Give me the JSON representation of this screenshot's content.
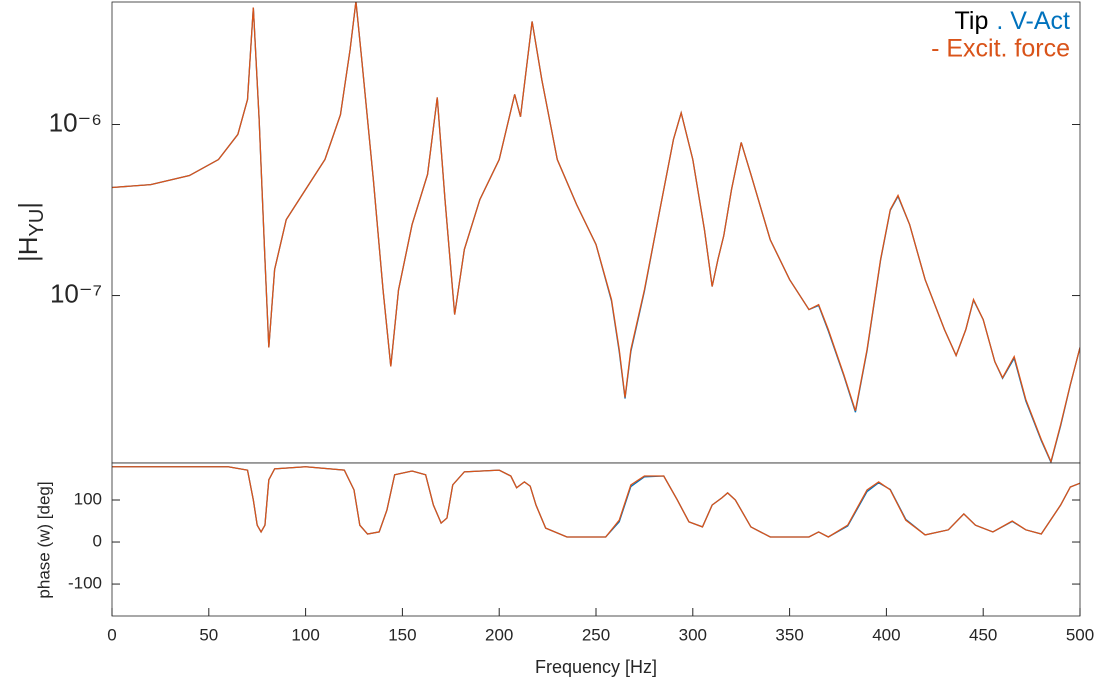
{
  "chart_data": [
    {
      "type": "line",
      "log_scale": true,
      "ylabel_main": "|H",
      "ylabel_sub": "YU",
      "ylabel_end": "|",
      "legend_prefix": "Tip",
      "x": [
        0,
        20,
        40,
        55,
        65,
        70,
        73,
        76,
        79,
        81,
        84,
        90,
        100,
        110,
        118,
        123,
        126,
        129,
        135,
        140,
        144,
        148,
        155,
        163,
        168,
        172,
        177,
        182,
        190,
        200,
        208,
        211,
        217,
        222,
        230,
        240,
        250,
        258,
        262,
        265,
        268,
        275,
        283,
        290,
        294,
        300,
        306,
        310,
        313,
        316,
        320,
        325,
        330,
        340,
        350,
        360,
        365,
        370,
        378,
        384,
        390,
        397,
        402,
        406,
        412,
        420,
        430,
        436,
        441,
        445,
        450,
        456,
        460,
        466,
        472,
        480,
        485,
        490,
        495,
        500
      ],
      "series": [
        {
          "name": ". V-Act",
          "color": "#0072bd",
          "values": [
            4.28e-07,
            4.45e-07,
            5.03e-07,
            6.24e-07,
            8.75e-07,
            1.4e-06,
            4.83e-06,
            1.07e-06,
            1.63e-07,
            4.97e-08,
            1.42e-07,
            2.78e-07,
            4.17e-07,
            6.24e-07,
            1.14e-06,
            2.75e-06,
            5.24e-06,
            2.4e-06,
            4.76e-07,
            1.08e-07,
            3.85e-08,
            1.08e-07,
            2.6e-07,
            5.11e-07,
            1.44e-06,
            3.64e-07,
            7.74e-08,
            1.86e-07,
            3.64e-07,
            6.24e-07,
            1.5e-06,
            1.11e-06,
            4e-06,
            1.83e-06,
            6.24e-07,
            3.4e-07,
            1.99e-07,
            9.3e-08,
            4.7e-08,
            2.5e-08,
            4.7e-08,
            1.06e-07,
            3.18e-07,
            8.17e-07,
            1.17e-06,
            6.24e-07,
            2.43e-07,
            1.13e-07,
            1.63e-07,
            2.24e-07,
            4.17e-07,
            7.85e-07,
            5.11e-07,
            2.12e-07,
            1.24e-07,
            8.28e-08,
            8.75e-08,
            6.2e-08,
            3.4e-08,
            2.08e-08,
            4.75e-08,
            1.61e-07,
            3.15e-07,
            3.8e-07,
            2.6e-07,
            1.24e-07,
            6.32e-08,
            4.46e-08,
            6.32e-08,
            9.4e-08,
            7.24e-08,
            4.11e-08,
            3.28e-08,
            4.3e-08,
            2.42e-08,
            1.42e-08,
            1.06e-08,
            1.73e-08,
            3e-08,
            4.97e-08
          ]
        },
        {
          "name": "- Excit. force",
          "color": "#d95319",
          "values": [
            4.28e-07,
            4.45e-07,
            5.03e-07,
            6.24e-07,
            8.75e-07,
            1.4e-06,
            4.83e-06,
            1.07e-06,
            1.63e-07,
            4.97e-08,
            1.42e-07,
            2.78e-07,
            4.17e-07,
            6.24e-07,
            1.14e-06,
            2.75e-06,
            5.24e-06,
            2.4e-06,
            4.76e-07,
            1.08e-07,
            3.85e-08,
            1.08e-07,
            2.6e-07,
            5.11e-07,
            1.44e-06,
            3.64e-07,
            7.74e-08,
            1.86e-07,
            3.64e-07,
            6.24e-07,
            1.5e-06,
            1.11e-06,
            4e-06,
            1.83e-06,
            6.24e-07,
            3.4e-07,
            1.99e-07,
            9.48e-08,
            4.83e-08,
            2.54e-08,
            4.83e-08,
            1.08e-07,
            3.18e-07,
            8.17e-07,
            1.17e-06,
            6.24e-07,
            2.43e-07,
            1.13e-07,
            1.63e-07,
            2.24e-07,
            4.17e-07,
            7.85e-07,
            5.11e-07,
            2.12e-07,
            1.24e-07,
            8.28e-08,
            8.85e-08,
            6.32e-08,
            3.45e-08,
            2.12e-08,
            4.83e-08,
            1.63e-07,
            3.18e-07,
            3.85e-07,
            2.6e-07,
            1.24e-07,
            6.32e-08,
            4.46e-08,
            6.32e-08,
            9.48e-08,
            7.24e-08,
            4.11e-08,
            3.31e-08,
            4.4e-08,
            2.47e-08,
            1.44e-08,
            1.07e-08,
            1.76e-08,
            3.02e-08,
            4.97e-08
          ]
        }
      ],
      "xlim": [
        0,
        500
      ],
      "ylim": [
        1.05e-08,
        5.2e-06
      ],
      "yticks": [
        {
          "value": 1e-07,
          "label": "10⁻⁷"
        },
        {
          "value": 1e-06,
          "label": "10⁻⁶"
        }
      ]
    },
    {
      "type": "line",
      "xlabel": "Frequency [Hz]",
      "ylabel": "phase (w) [deg]",
      "x": [
        0,
        60,
        70,
        73,
        75,
        77,
        79,
        81,
        84,
        100,
        120,
        125,
        128,
        132,
        138,
        142,
        146,
        155,
        162,
        166,
        170,
        173,
        176,
        182,
        200,
        206,
        209,
        213,
        216,
        219,
        224,
        235,
        255,
        262,
        268,
        275,
        285,
        292,
        298,
        305,
        310,
        315,
        318,
        322,
        330,
        340,
        360,
        365,
        370,
        380,
        390,
        396,
        402,
        410,
        420,
        432,
        440,
        446,
        455,
        465,
        472,
        480,
        490,
        495,
        500
      ],
      "series": [
        {
          "name": ". V-Act",
          "color": "#0072bd",
          "values": [
            179,
            179,
            171,
            100,
            40,
            24,
            40,
            148,
            174,
            179,
            171,
            124,
            40,
            19,
            24,
            76,
            160,
            169,
            160,
            88,
            45,
            57,
            136,
            167,
            171,
            157,
            129,
            143,
            133,
            88,
            33,
            12,
            12,
            48,
            132,
            155,
            157,
            100,
            48,
            36,
            88,
            105,
            117,
            100,
            36,
            12,
            12,
            24,
            12,
            38,
            120,
            141,
            125,
            54,
            17,
            29,
            67,
            40,
            24,
            49,
            29,
            19,
            88,
            131,
            140
          ]
        },
        {
          "name": "- Excit. force",
          "color": "#d95319",
          "values": [
            179,
            179,
            171,
            100,
            40,
            24,
            40,
            148,
            174,
            179,
            171,
            124,
            40,
            19,
            24,
            76,
            160,
            169,
            160,
            88,
            45,
            57,
            136,
            167,
            171,
            157,
            129,
            143,
            133,
            88,
            33,
            12,
            12,
            52,
            136,
            157,
            157,
            100,
            48,
            36,
            88,
            105,
            117,
            100,
            36,
            12,
            12,
            24,
            12,
            40,
            124,
            143,
            124,
            52,
            17,
            29,
            67,
            40,
            24,
            50,
            29,
            19,
            88,
            131,
            140
          ]
        }
      ],
      "xlim": [
        0,
        500
      ],
      "ylim": [
        -176,
        188
      ],
      "xticks": [
        0,
        50,
        100,
        150,
        200,
        250,
        300,
        350,
        400,
        450,
        500
      ],
      "yticks": [
        -100,
        0,
        100
      ]
    }
  ]
}
